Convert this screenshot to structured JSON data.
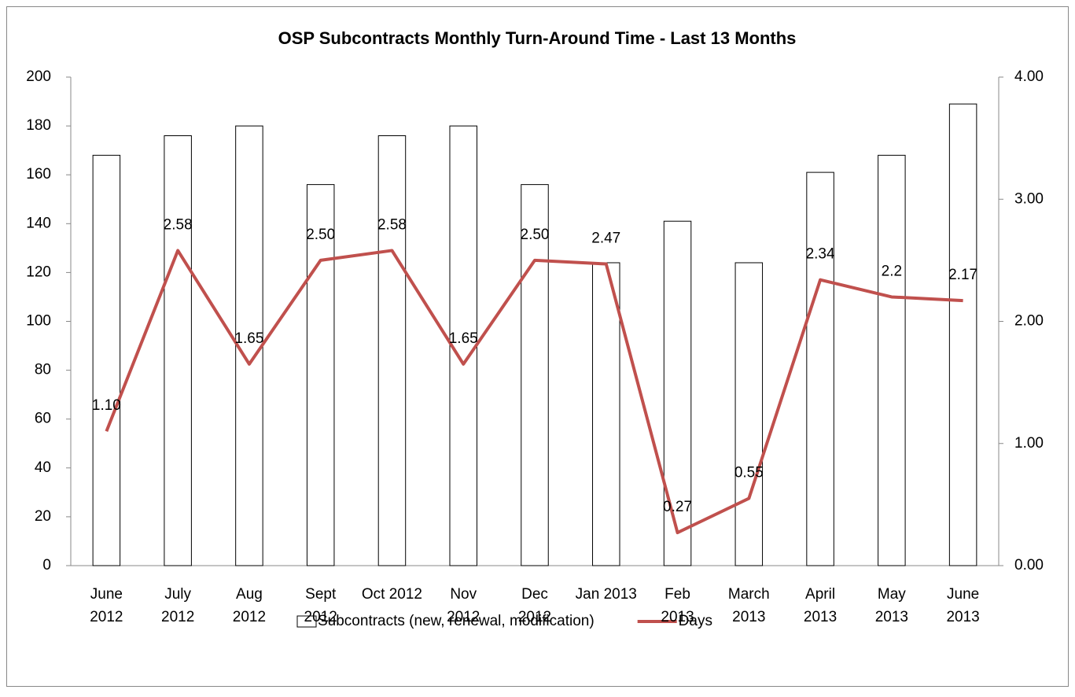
{
  "chart_data": {
    "type": "bar+line",
    "title": "OSP Subcontracts Monthly Turn-Around Time - Last 13 Months",
    "categories": [
      "June 2012",
      "July 2012",
      "Aug 2012",
      "Sept 2012",
      "Oct 2012",
      "Nov 2012",
      "Dec 2012",
      "Jan 2013",
      "Feb 2013",
      "March 2013",
      "April 2013",
      "May 2013",
      "June 2013"
    ],
    "series": [
      {
        "name": "Subcontracts (new, renewal, modification)",
        "type": "bar",
        "color": "#ffffff",
        "values": [
          168,
          176,
          180,
          156,
          176,
          180,
          156,
          124,
          141,
          124,
          161,
          168,
          189
        ]
      },
      {
        "name": "Days",
        "type": "line",
        "axis": "y2",
        "color": "#c0504d",
        "values": [
          1.1,
          2.58,
          1.65,
          2.5,
          2.58,
          1.65,
          2.5,
          2.47,
          0.27,
          0.55,
          2.34,
          2.2,
          2.17
        ],
        "value_labels": [
          "1.10",
          "2.58",
          "1.65",
          "2.50",
          "2.58",
          "1.65",
          "2.50",
          "2.47",
          "0.27",
          "0.55",
          "2.34",
          "2.2",
          "2.17"
        ]
      }
    ],
    "ylim": [
      0,
      200
    ],
    "yticks": [
      0,
      20,
      40,
      60,
      80,
      100,
      120,
      140,
      160,
      180,
      200
    ],
    "y2lim": [
      0,
      4
    ],
    "y2ticks": [
      {
        "value": 0,
        "label": "0.00"
      },
      {
        "value": 1,
        "label": "1.00"
      },
      {
        "value": 2,
        "label": "2.00"
      },
      {
        "value": 3,
        "label": "3.00"
      },
      {
        "value": 4,
        "label": "4.00"
      }
    ],
    "legend": "bottom"
  }
}
